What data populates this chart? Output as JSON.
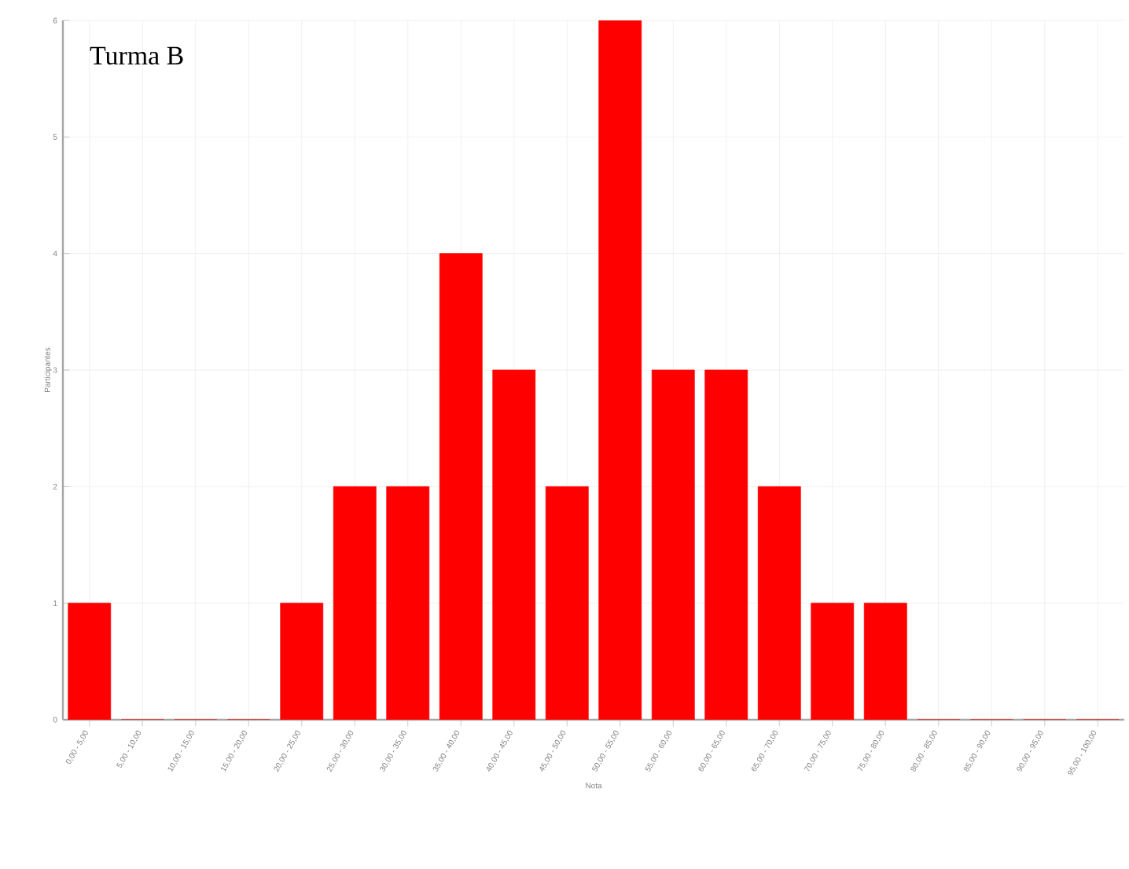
{
  "chart_data": {
    "type": "bar",
    "annotations": [
      "Turma B"
    ],
    "xlabel": "Nota",
    "ylabel": "Participantes",
    "categories": [
      "0,00 - 5,00",
      "5,00 - 10,00",
      "10,00 - 15,00",
      "15,00 - 20,00",
      "20,00 - 25,00",
      "25,00 - 30,00",
      "30,00 - 35,00",
      "35,00 - 40,00",
      "40,00 - 45,00",
      "45,00 - 50,00",
      "50,00 - 55,00",
      "55,00 - 60,00",
      "60,00 - 65,00",
      "65,00 - 70,00",
      "70,00 - 75,00",
      "75,00 - 80,00",
      "80,00 - 85,00",
      "85,00 - 90,00",
      "90,00 - 95,00",
      "95,00 - 100,00"
    ],
    "values": [
      1,
      0,
      0,
      0,
      1,
      2,
      2,
      4,
      3,
      2,
      6,
      3,
      3,
      2,
      1,
      1,
      0,
      0,
      0,
      0
    ],
    "color": "#ff0000",
    "ylim": [
      0,
      6
    ],
    "yticks": [
      0,
      1,
      2,
      3,
      4,
      5,
      6
    ],
    "grid": true
  }
}
